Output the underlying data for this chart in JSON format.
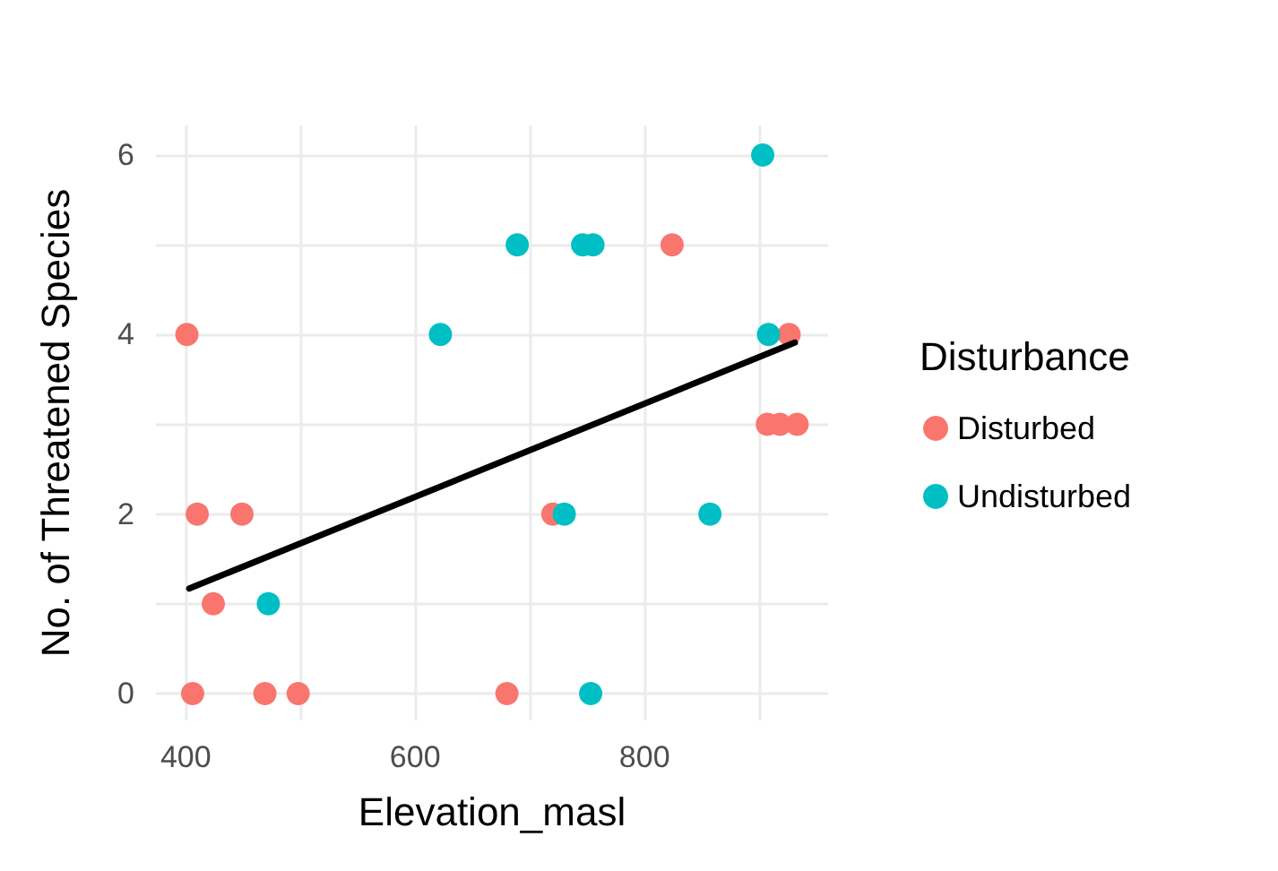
{
  "chart_data": {
    "type": "scatter",
    "xlabel": "Elevation_masl",
    "ylabel": "No. of Threatened Species",
    "legend_title": "Disturbance",
    "legend": "right",
    "grid": true,
    "marker": "circle",
    "xlim": [
      374,
      960
    ],
    "ylim": [
      -0.3,
      6.33
    ],
    "xticks": [
      400,
      {
        "value": 500,
        "label": null
      },
      600,
      {
        "value": 700,
        "label": null
      },
      800,
      {
        "value": 900,
        "label": null
      }
    ],
    "yticks": [
      0,
      {
        "value": 1,
        "label": null
      },
      2,
      {
        "value": 3,
        "label": null
      },
      4,
      {
        "value": 5,
        "label": null
      },
      6
    ],
    "series": [
      {
        "name": "Disturbed",
        "color": "#f8766d",
        "x": [
          401,
          410,
          449,
          424,
          406,
          469,
          498,
          680,
          720,
          824,
          926,
          907,
          918,
          933
        ],
        "values": [
          4,
          2,
          2,
          1,
          0,
          0,
          0,
          0,
          2,
          5,
          4,
          3,
          3,
          3
        ]
      },
      {
        "name": "Undisturbed",
        "color": "#00bfc4",
        "x": [
          903,
          689,
          746,
          755,
          622,
          908,
          730,
          857,
          472,
          753
        ],
        "values": [
          6,
          5,
          5,
          5,
          4,
          4,
          2,
          2,
          1,
          0
        ]
      },
      {
        "type": "line",
        "color": "#000000",
        "marker": "none",
        "x": [
          403,
          931
        ],
        "values": [
          1.17,
          3.91
        ]
      }
    ]
  }
}
